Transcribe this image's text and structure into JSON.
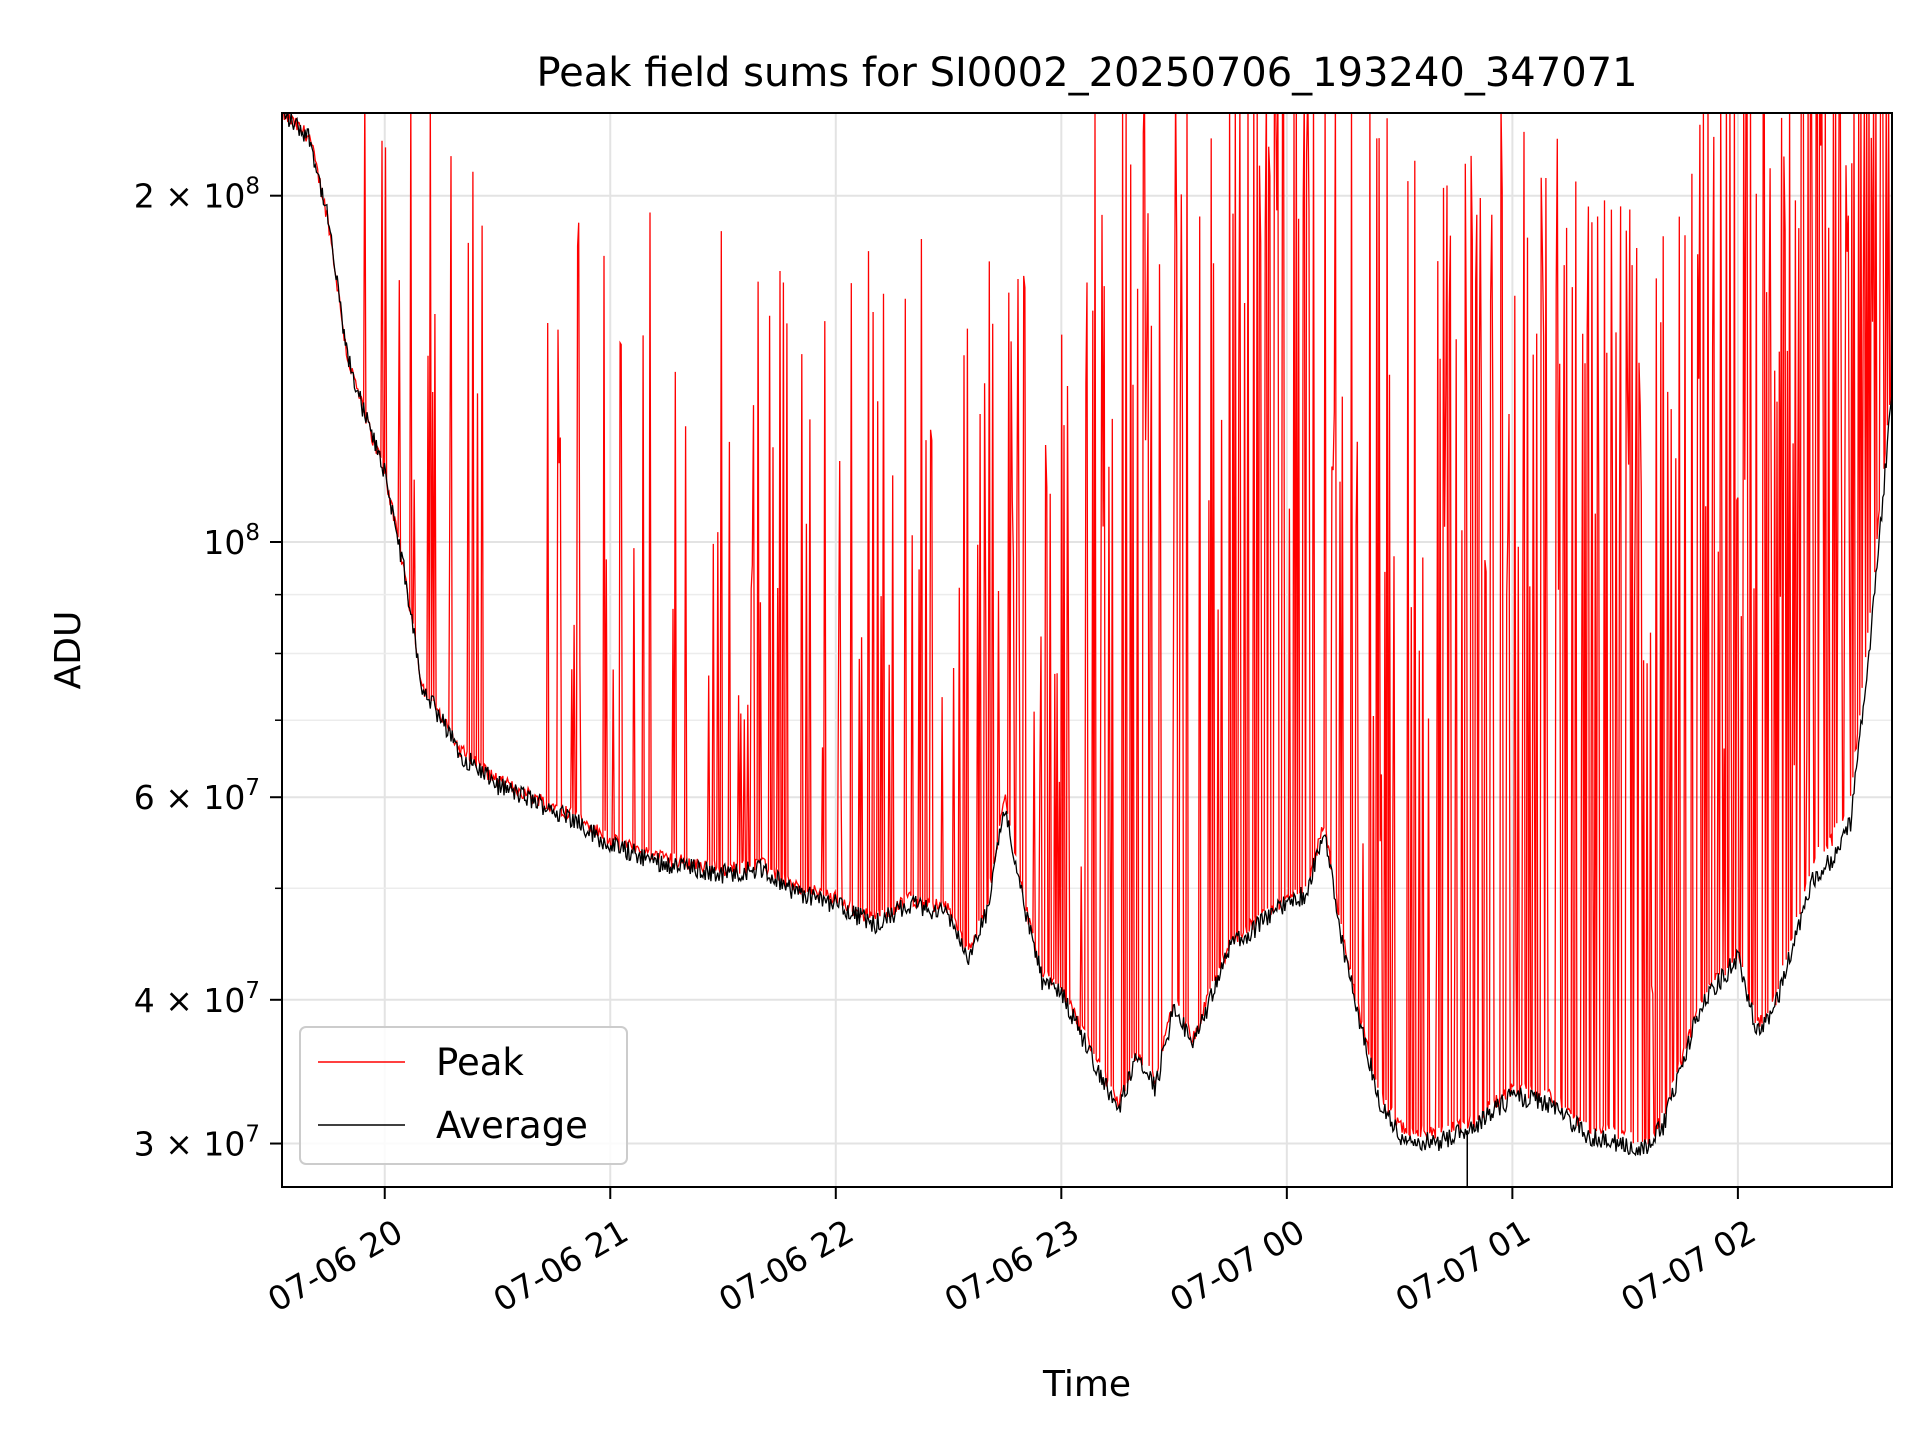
{
  "chart_data": {
    "type": "line",
    "title": "Peak field sums for SI0002_20250706_193240_347071",
    "xlabel": "Time",
    "ylabel": "ADU",
    "xlim": [
      "2025-07-06 19:32:40",
      "2025-07-07 02:41:00"
    ],
    "ylim": [
      27500000,
      236000000
    ],
    "y_scale": "log",
    "grid": true,
    "legend_position": "lower-left",
    "x_ticks": [
      "07-06 20",
      "07-06 21",
      "07-06 22",
      "07-06 23",
      "07-07 00",
      "07-07 01",
      "07-07 02"
    ],
    "y_ticks": [
      {
        "label": "2 × 10",
        "exp": "8",
        "value": 200000000
      },
      {
        "label": "10",
        "exp": "8",
        "value": 100000000
      },
      {
        "label": "6 × 10",
        "exp": "7",
        "value": 60000000
      },
      {
        "label": "4 × 10",
        "exp": "7",
        "value": 40000000
      },
      {
        "label": "3 × 10",
        "exp": "7",
        "value": 30000000
      }
    ],
    "y_minor_ticks": [
      90000000,
      80000000,
      70000000,
      50000000
    ],
    "series": [
      {
        "name": "Peak",
        "color": "#ff0000",
        "baseline": {
          "x": [
            "2025-07-06 19:32:40",
            "2025-07-06 19:40",
            "2025-07-06 19:45",
            "2025-07-06 19:50",
            "2025-07-06 19:55",
            "2025-07-06 20:00",
            "2025-07-06 20:05",
            "2025-07-06 20:10",
            "2025-07-06 20:20",
            "2025-07-06 20:30",
            "2025-07-06 20:40",
            "2025-07-06 20:50",
            "2025-07-06 21:00",
            "2025-07-06 21:15",
            "2025-07-06 21:30",
            "2025-07-06 21:40",
            "2025-07-06 21:50",
            "2025-07-06 22:00",
            "2025-07-06 22:10",
            "2025-07-06 22:20",
            "2025-07-06 22:30",
            "2025-07-06 22:35",
            "2025-07-06 22:40",
            "2025-07-06 22:45",
            "2025-07-06 22:50",
            "2025-07-06 22:55",
            "2025-07-06 23:00",
            "2025-07-06 23:05",
            "2025-07-06 23:15",
            "2025-07-06 23:20",
            "2025-07-06 23:25",
            "2025-07-06 23:30",
            "2025-07-06 23:35",
            "2025-07-06 23:45",
            "2025-07-07 00:00",
            "2025-07-07 00:05",
            "2025-07-07 00:10",
            "2025-07-07 00:15",
            "2025-07-07 00:20",
            "2025-07-07 00:25",
            "2025-07-07 00:30",
            "2025-07-07 00:40",
            "2025-07-07 00:50",
            "2025-07-07 01:00",
            "2025-07-07 01:10",
            "2025-07-07 01:20",
            "2025-07-07 01:30",
            "2025-07-07 01:35",
            "2025-07-07 01:40",
            "2025-07-07 01:50",
            "2025-07-07 02:00",
            "2025-07-07 02:05",
            "2025-07-07 02:10",
            "2025-07-07 02:15",
            "2025-07-07 02:20",
            "2025-07-07 02:25",
            "2025-07-07 02:30",
            "2025-07-07 02:35",
            "2025-07-07 02:41:00"
          ],
          "values": [
            236000000,
            225000000,
            190000000,
            145000000,
            128000000,
            115000000,
            95000000,
            75000000,
            66000000,
            62000000,
            60000000,
            58000000,
            55000000,
            53000000,
            52000000,
            52500000,
            50000000,
            49000000,
            47000000,
            49000000,
            48000000,
            44000000,
            48000000,
            60000000,
            49000000,
            42000000,
            41000000,
            38000000,
            32500000,
            36000000,
            34000000,
            40000000,
            37000000,
            45000000,
            49000000,
            50000000,
            57000000,
            45000000,
            38000000,
            33000000,
            31000000,
            30500000,
            31500000,
            33500000,
            33000000,
            31000000,
            30500000,
            30000000,
            31500000,
            40000000,
            44000000,
            38000000,
            40000000,
            46000000,
            53000000,
            55000000,
            60000000,
            85000000,
            140000000
          ]
        }
      },
      {
        "name": "Average",
        "color": "#000000",
        "baseline": {
          "x": [
            "2025-07-06 19:32:40",
            "2025-07-06 19:40",
            "2025-07-06 19:45",
            "2025-07-06 19:50",
            "2025-07-06 19:55",
            "2025-07-06 20:00",
            "2025-07-06 20:05",
            "2025-07-06 20:10",
            "2025-07-06 20:20",
            "2025-07-06 20:30",
            "2025-07-06 20:40",
            "2025-07-06 20:50",
            "2025-07-06 21:00",
            "2025-07-06 21:15",
            "2025-07-06 21:30",
            "2025-07-06 21:40",
            "2025-07-06 21:50",
            "2025-07-06 22:00",
            "2025-07-06 22:10",
            "2025-07-06 22:20",
            "2025-07-06 22:30",
            "2025-07-06 22:35",
            "2025-07-06 22:40",
            "2025-07-06 22:45",
            "2025-07-06 22:50",
            "2025-07-06 22:55",
            "2025-07-06 23:00",
            "2025-07-06 23:05",
            "2025-07-06 23:15",
            "2025-07-06 23:20",
            "2025-07-06 23:25",
            "2025-07-06 23:30",
            "2025-07-06 23:35",
            "2025-07-06 23:45",
            "2025-07-07 00:00",
            "2025-07-07 00:05",
            "2025-07-07 00:10",
            "2025-07-07 00:15",
            "2025-07-07 00:20",
            "2025-07-07 00:25",
            "2025-07-07 00:30",
            "2025-07-07 00:40",
            "2025-07-07 00:50",
            "2025-07-07 01:00",
            "2025-07-07 01:10",
            "2025-07-07 01:20",
            "2025-07-07 01:30",
            "2025-07-07 01:35",
            "2025-07-07 01:40",
            "2025-07-07 01:50",
            "2025-07-07 02:00",
            "2025-07-07 02:05",
            "2025-07-07 02:10",
            "2025-07-07 02:15",
            "2025-07-07 02:20",
            "2025-07-07 02:25",
            "2025-07-07 02:30",
            "2025-07-07 02:35",
            "2025-07-07 02:41:00"
          ],
          "values": [
            236000000,
            225000000,
            190000000,
            145000000,
            128000000,
            115000000,
            95000000,
            75000000,
            65500000,
            61500000,
            59500000,
            57500000,
            54500000,
            52500000,
            51500000,
            52000000,
            49500000,
            48500000,
            46500000,
            48500000,
            47500000,
            43500000,
            47500000,
            59000000,
            48500000,
            41500000,
            40500000,
            37500000,
            32000000,
            35500000,
            33500000,
            39500000,
            36500000,
            44500000,
            48500000,
            49500000,
            56000000,
            44500000,
            37500000,
            32500000,
            30500000,
            30000000,
            31000000,
            33000000,
            32500000,
            30500000,
            30000000,
            29700000,
            31000000,
            39500000,
            43500000,
            37500000,
            39500000,
            45000000,
            51000000,
            53000000,
            57000000,
            80000000,
            135000000
          ]
        },
        "outliers": [
          {
            "x": "2025-07-07 00:48",
            "y": 27500000
          },
          {
            "x": "2025-07-07 01:07",
            "y": 33000000
          }
        ]
      }
    ]
  }
}
